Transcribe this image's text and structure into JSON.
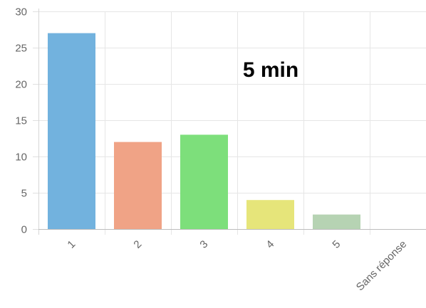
{
  "chart_data": {
    "type": "bar",
    "title": "",
    "xlabel": "",
    "ylabel": "",
    "categories": [
      "1",
      "2",
      "3",
      "4",
      "5",
      "Sans réponse"
    ],
    "values": [
      27,
      12,
      13,
      4,
      2,
      0
    ],
    "colors": [
      "#72b2de",
      "#f0a386",
      "#7ddf7b",
      "#e6e57a",
      "#b6d3b3",
      "#cccccc"
    ],
    "ylim": [
      0,
      30
    ],
    "yticks": [
      0,
      5,
      10,
      15,
      20,
      25,
      30
    ],
    "grid": true,
    "legend": "none",
    "annotation": "5 min"
  }
}
